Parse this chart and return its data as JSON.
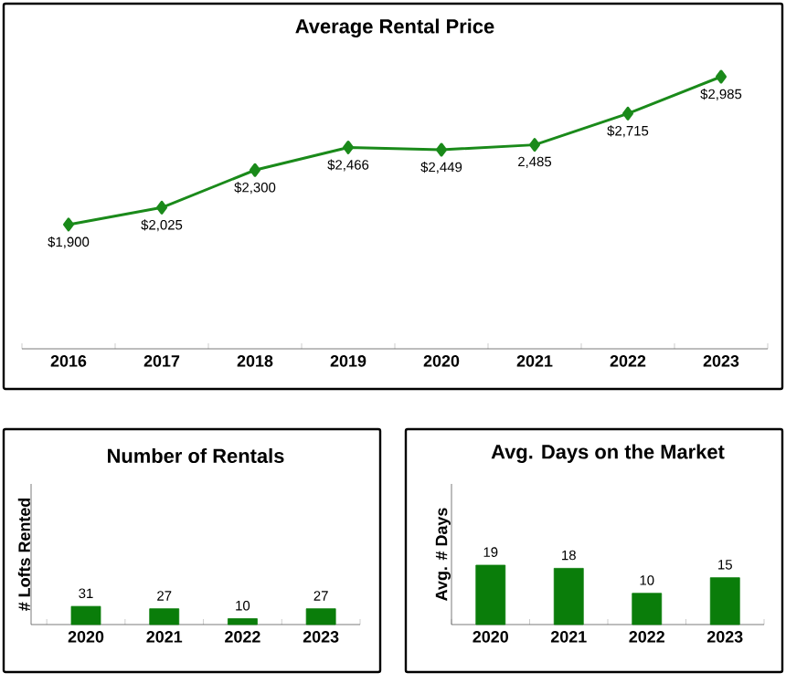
{
  "chart_data": [
    {
      "type": "line",
      "title": "Average Rental Price",
      "categories": [
        "2016",
        "2017",
        "2018",
        "2019",
        "2020",
        "2021",
        "2022",
        "2023"
      ],
      "values": [
        1900,
        2025,
        2300,
        2466,
        2449,
        2485,
        2715,
        2985
      ],
      "value_labels": [
        "$1,900",
        "$2,025",
        "$2,300",
        "$2,466",
        "$2,449",
        "2,485",
        "$2,715",
        "$2,985"
      ],
      "color": "#1a8a1a",
      "marker": "diamond",
      "line_style": "solid",
      "tick_labels": "x"
    },
    {
      "type": "bar",
      "title": "Number of Rentals",
      "ylabel": "# Lofts Rented",
      "categories": [
        "2020",
        "2021",
        "2022",
        "2023"
      ],
      "values": [
        31,
        27,
        10,
        27
      ],
      "color": "#0a7d0a",
      "data_labels": true,
      "ylim": [
        0,
        240
      ],
      "tick_labels": "x"
    },
    {
      "type": "bar",
      "title": "Avg. Days on the Market",
      "ylabel": "Avg. # Days",
      "categories": [
        "2020",
        "2021",
        "2022",
        "2023"
      ],
      "values": [
        19,
        18,
        10,
        15
      ],
      "color": "#0a7d0a",
      "data_labels": true,
      "ylim": [
        0,
        45
      ],
      "tick_labels": "x"
    }
  ]
}
